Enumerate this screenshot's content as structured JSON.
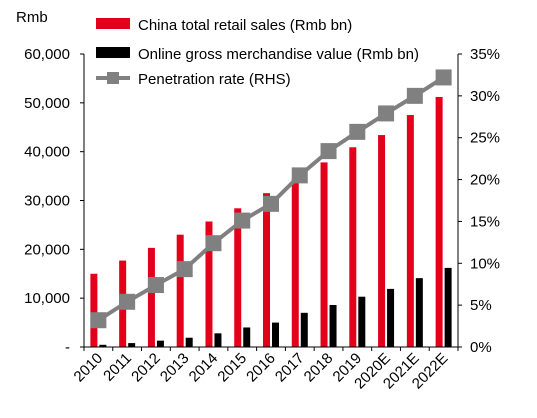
{
  "chart_data": {
    "type": "bar",
    "categories": [
      "2010",
      "2011",
      "2012",
      "2013",
      "2014",
      "2015",
      "2016",
      "2017",
      "2018",
      "2019",
      "2020E",
      "2021E",
      "2022E"
    ],
    "series": [
      {
        "name": "China total retail sales (Rmb bn)",
        "type": "bar",
        "axis": "left",
        "color": "#e3001b",
        "values": [
          15000,
          17700,
          20300,
          23000,
          25700,
          28400,
          31500,
          34500,
          37800,
          40900,
          43400,
          47500,
          51200
        ]
      },
      {
        "name": "Online gross merchandise value (Rmb bn)",
        "type": "bar",
        "axis": "left",
        "color": "#000000",
        "values": [
          450,
          800,
          1300,
          1900,
          2800,
          4000,
          5000,
          7000,
          8600,
          10300,
          11900,
          14100,
          16200
        ]
      },
      {
        "name": "Penetration rate (RHS)",
        "type": "line",
        "axis": "right",
        "color": "#808080",
        "marker": "square",
        "values": [
          3.2,
          5.4,
          7.4,
          9.3,
          12.4,
          15.1,
          17.1,
          20.5,
          23.4,
          25.7,
          27.9,
          30.0,
          32.2
        ]
      }
    ],
    "y_left": {
      "label": "Rmb",
      "ylim": [
        0,
        60000
      ],
      "ticks": [
        0,
        10000,
        20000,
        30000,
        40000,
        50000,
        60000
      ],
      "tick_labels": [
        "-",
        "10,000",
        "20,000",
        "30,000",
        "40,000",
        "50,000",
        "60,000"
      ]
    },
    "y_right": {
      "ylim": [
        0,
        35
      ],
      "ticks": [
        0,
        5,
        10,
        15,
        20,
        25,
        30,
        35
      ],
      "tick_labels": [
        "0%",
        "5%",
        "10%",
        "15%",
        "20%",
        "25%",
        "30%",
        "35%"
      ]
    },
    "legend_placement": "top-left",
    "grid": false
  }
}
